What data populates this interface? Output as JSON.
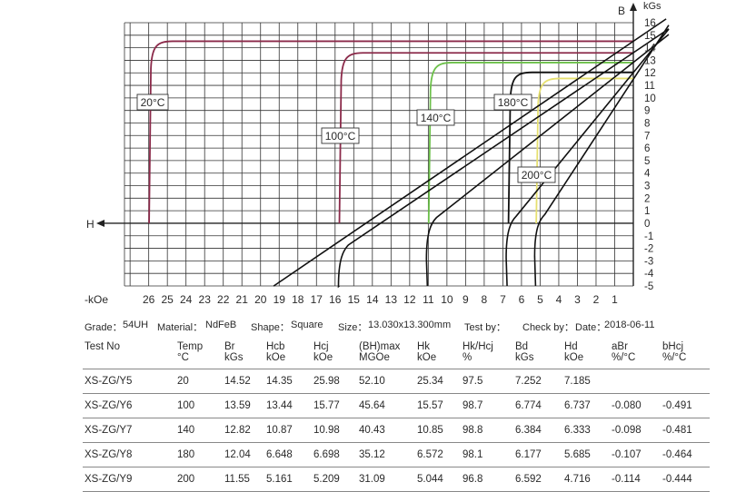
{
  "chart_data": {
    "type": "line",
    "x_axis_label": "-kOe",
    "x_axis_name": "H",
    "y_axis_label": "B",
    "y_axis_unit": "kGs",
    "x_ticks": [
      26,
      25,
      24,
      23,
      22,
      21,
      20,
      19,
      18,
      17,
      16,
      15,
      14,
      13,
      12,
      11,
      10,
      9,
      8,
      7,
      6,
      5,
      4,
      3,
      2,
      1
    ],
    "y_ticks": [
      16,
      15,
      14,
      13,
      12,
      11,
      10,
      9,
      8,
      7,
      6,
      5,
      4,
      3,
      2,
      1,
      0,
      -1,
      -2,
      -3,
      -4,
      -5
    ],
    "xlim_neg_kOe": [
      27.3,
      0
    ],
    "ylim_kGs": [
      -5,
      16
    ],
    "grid": true,
    "series": [
      {
        "name": "20°C",
        "color": "#8b2a4a",
        "Hcj": 25.98,
        "Br": 14.52
      },
      {
        "name": "100°C",
        "color": "#8b2a4a",
        "Hcj": 15.77,
        "Br": 13.59
      },
      {
        "name": "140°C",
        "color": "#6cc04a",
        "Hcj": 10.98,
        "Br": 12.82
      },
      {
        "name": "180°C",
        "color": "#111111",
        "Hcj": 6.698,
        "Br": 12.04
      },
      {
        "name": "200°C",
        "color": "#e6e070",
        "Hcj": 5.209,
        "Br": 11.55
      }
    ],
    "normal_curves": [
      {
        "temp": "100°C",
        "Br": 13.59,
        "Hcb": 13.44,
        "Hk": 15.57
      },
      {
        "temp": "140°C",
        "Br": 12.82,
        "Hcb": 10.87,
        "Hk": 10.85
      },
      {
        "temp": "180°C",
        "Br": 12.04,
        "Hcb": 6.648,
        "Hk": 6.572
      },
      {
        "temp": "200°C",
        "Br": 11.55,
        "Hcb": 5.161,
        "Hk": 5.044
      }
    ],
    "normal_curve_color": "#111111"
  },
  "info": {
    "grade_label": "Grade：",
    "grade": "54UH",
    "material_label": "Material：",
    "material": "NdFeB",
    "shape_label": "Shape：",
    "shape": "Square",
    "size_label": "Size：",
    "size": "13.030x13.300mm",
    "testby_label": "Test by：",
    "checkby_label": "Check by：",
    "date_label": "Date：",
    "date": "2018-06-11"
  },
  "table": {
    "headers": [
      [
        "Test No",
        ""
      ],
      [
        "Temp",
        "°C"
      ],
      [
        "Br",
        "kGs"
      ],
      [
        "Hcb",
        "kOe"
      ],
      [
        "Hcj",
        "kOe"
      ],
      [
        "(BH)max",
        "MGOe"
      ],
      [
        "Hk",
        "kOe"
      ],
      [
        "Hk/Hcj",
        "%"
      ],
      [
        "Bd",
        "kGs"
      ],
      [
        "Hd",
        "kOe"
      ],
      [
        "aBr",
        "%/°C"
      ],
      [
        "bHcj",
        "%/°C"
      ]
    ],
    "rows": [
      [
        "XS-ZG/Y5",
        "20",
        "14.52",
        "14.35",
        "25.98",
        "52.10",
        "25.34",
        "97.5",
        "7.252",
        "7.185",
        "",
        ""
      ],
      [
        "XS-ZG/Y6",
        "100",
        "13.59",
        "13.44",
        "15.77",
        "45.64",
        "15.57",
        "98.7",
        "6.774",
        "6.737",
        "-0.080",
        "-0.491"
      ],
      [
        "XS-ZG/Y7",
        "140",
        "12.82",
        "10.87",
        "10.98",
        "40.43",
        "10.85",
        "98.8",
        "6.384",
        "6.333",
        "-0.098",
        "-0.481"
      ],
      [
        "XS-ZG/Y8",
        "180",
        "12.04",
        "6.648",
        "6.698",
        "35.12",
        "6.572",
        "98.1",
        "6.177",
        "5.685",
        "-0.107",
        "-0.464"
      ],
      [
        "XS-ZG/Y9",
        "200",
        "11.55",
        "5.161",
        "5.209",
        "31.09",
        "5.044",
        "96.8",
        "6.592",
        "4.716",
        "-0.114",
        "-0.444"
      ]
    ]
  }
}
